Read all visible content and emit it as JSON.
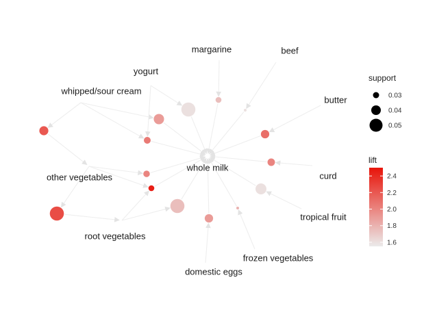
{
  "graph": {
    "items": [
      {
        "id": "whole_milk",
        "label": "whole milk"
      },
      {
        "id": "margarine",
        "label": "margarine"
      },
      {
        "id": "beef",
        "label": "beef"
      },
      {
        "id": "yogurt",
        "label": "yogurt"
      },
      {
        "id": "butter",
        "label": "butter"
      },
      {
        "id": "whipped",
        "label": "whipped/sour cream"
      },
      {
        "id": "curd",
        "label": "curd"
      },
      {
        "id": "other_veg",
        "label": "other vegetables"
      },
      {
        "id": "tropical",
        "label": "tropical fruit"
      },
      {
        "id": "root_veg",
        "label": "root vegetables"
      },
      {
        "id": "frozen_veg",
        "label": "frozen vegetables"
      },
      {
        "id": "eggs",
        "label": "domestic eggs"
      }
    ],
    "rules": [
      {
        "id": "r1",
        "support": 0.03,
        "lift": 1.75,
        "from": [
          "margarine"
        ],
        "to": "whole_milk"
      },
      {
        "id": "r2",
        "support": 0.02,
        "lift": 1.6,
        "from": [
          "beef"
        ],
        "to": "whole_milk"
      },
      {
        "id": "r3",
        "support": 0.056,
        "lift": 1.6,
        "from": [
          "yogurt"
        ],
        "to": "whole_milk"
      },
      {
        "id": "r4",
        "support": 0.044,
        "lift": 1.9,
        "from": [
          "whipped"
        ],
        "to": "whole_milk"
      },
      {
        "id": "r5",
        "support": 0.038,
        "lift": 2.1,
        "from": [
          "butter"
        ],
        "to": "whole_milk"
      },
      {
        "id": "r6",
        "support": 0.035,
        "lift": 2.0,
        "from": [
          "curd"
        ],
        "to": "whole_milk"
      },
      {
        "id": "r7",
        "support": 0.046,
        "lift": 1.6,
        "from": [
          "tropical"
        ],
        "to": "whole_milk"
      },
      {
        "id": "r8",
        "support": 0.04,
        "lift": 2.2,
        "from": [
          "whipped"
        ],
        "to": "other_veg"
      },
      {
        "id": "r9",
        "support": 0.033,
        "lift": 2.05,
        "from": [
          "whipped",
          "yogurt"
        ],
        "to": "whole_milk"
      },
      {
        "id": "r10",
        "support": 0.032,
        "lift": 2.0,
        "from": [
          "other_veg"
        ],
        "to": "whole_milk"
      },
      {
        "id": "r11",
        "support": 0.03,
        "lift": 2.45,
        "from": [
          "root_veg",
          "other_veg"
        ],
        "to": "whole_milk"
      },
      {
        "id": "r12",
        "support": 0.056,
        "lift": 2.25,
        "from": [
          "other_veg"
        ],
        "to": "root_veg"
      },
      {
        "id": "r13",
        "support": 0.056,
        "lift": 1.75,
        "from": [
          "root_veg"
        ],
        "to": "whole_milk"
      },
      {
        "id": "r14",
        "support": 0.038,
        "lift": 1.9,
        "from": [
          "eggs"
        ],
        "to": "whole_milk"
      },
      {
        "id": "r15",
        "support": 0.02,
        "lift": 1.8,
        "from": [
          "frozen_veg"
        ],
        "to": "whole_milk"
      }
    ],
    "colors": {
      "edge": "#eeeeee",
      "arrow": "#e3e3e3",
      "lift_low": "#ebebeb",
      "lift_high": "#e8140a"
    }
  },
  "legend": {
    "support_title": "support",
    "support_entries": [
      {
        "value": 0.03,
        "label": "0.03"
      },
      {
        "value": 0.04,
        "label": "0.04"
      },
      {
        "value": 0.05,
        "label": "0.05"
      }
    ],
    "lift_title": "lift",
    "lift_range": [
      1.55,
      2.5
    ],
    "lift_ticks": [
      {
        "value": 2.4,
        "label": "2.4"
      },
      {
        "value": 2.2,
        "label": "2.2"
      },
      {
        "value": 2.0,
        "label": "2.0"
      },
      {
        "value": 1.8,
        "label": "1.8"
      },
      {
        "value": 1.6,
        "label": "1.6"
      }
    ]
  }
}
